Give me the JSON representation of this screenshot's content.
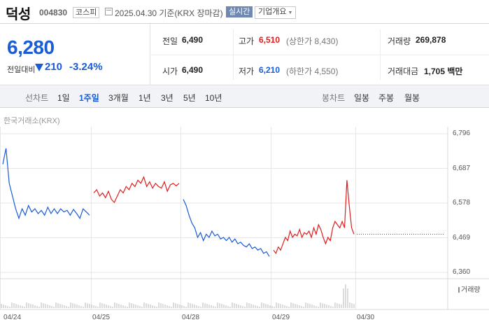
{
  "header": {
    "name": "덕성",
    "code": "004830",
    "market": "코스피",
    "date": "2025.04.30 기준(KRX 장마감)",
    "realtime_button": "실시간",
    "company_info_button": "기업개요"
  },
  "price": {
    "current": "6,280",
    "compare_label": "전일대비",
    "change": "210",
    "change_pct": "-3.24%",
    "direction": "down"
  },
  "stats": {
    "prev_close_label": "전일",
    "prev_close": "6,490",
    "high_label": "고가",
    "high": "6,510",
    "upper_limit": "(상한가 8,430)",
    "volume_label": "거래량",
    "volume": "269,878",
    "open_label": "시가",
    "open": "6,490",
    "low_label": "저가",
    "low": "6,210",
    "lower_limit": "(하한가 4,550)",
    "amount_label": "거래대금",
    "amount": "1,705 백만"
  },
  "tabs": {
    "line_label": "선차트",
    "line_items": [
      "1일",
      "1주일",
      "3개월",
      "1년",
      "3년",
      "5년",
      "10년"
    ],
    "line_active": "1주일",
    "candle_label": "봉차트",
    "candle_items": [
      "일봉",
      "주봉",
      "월봉"
    ]
  },
  "chart_source": "한국거래소(KRX)",
  "volume_legend": "거래량",
  "colors": {
    "up": "#e01d1d",
    "down": "#1a5bd6",
    "accent": "#1a5bd6"
  },
  "chart_data": {
    "type": "line",
    "title": "",
    "x_ticks": [
      "04/24",
      "04/25",
      "04/28",
      "04/29",
      "04/30"
    ],
    "y_ticks": [
      6796,
      6687,
      6578,
      6469,
      6360
    ],
    "ylim": [
      6360,
      6796
    ],
    "reference_price": 6480,
    "series": [
      {
        "day": "04/24",
        "trend": "down",
        "values": [
          6700,
          6750,
          6640,
          6600,
          6560,
          6530,
          6560,
          6540,
          6570,
          6550,
          6560,
          6545,
          6555,
          6540,
          6565,
          6545,
          6560,
          6545,
          6560,
          6550,
          6555,
          6540,
          6558,
          6545,
          6530,
          6560,
          6550,
          6540
        ]
      },
      {
        "day": "04/25",
        "trend": "up",
        "values": [
          6610,
          6620,
          6600,
          6610,
          6595,
          6615,
          6590,
          6580,
          6600,
          6620,
          6610,
          6630,
          6620,
          6640,
          6630,
          6650,
          6640,
          6660,
          6630,
          6645,
          6625,
          6640,
          6630,
          6625,
          6645,
          6615,
          6635,
          6640,
          6632,
          6640
        ]
      },
      {
        "day": "04/28",
        "trend": "down",
        "values": [
          6590,
          6570,
          6540,
          6515,
          6500,
          6470,
          6485,
          6460,
          6480,
          6470,
          6490,
          6475,
          6480,
          6465,
          6470,
          6460,
          6470,
          6455,
          6465,
          6450,
          6455,
          6445,
          6440,
          6450,
          6435,
          6440,
          6430,
          6435,
          6420,
          6425,
          6410
        ]
      },
      {
        "day": "04/29",
        "trend": "up",
        "values": [
          6430,
          6420,
          6440,
          6430,
          6450,
          6470,
          6460,
          6490,
          6470,
          6480,
          6475,
          6495,
          6470,
          6485,
          6480,
          6490,
          6470,
          6500,
          6480,
          6510,
          6495,
          6470,
          6450,
          6470,
          6460,
          6500,
          6520,
          6510,
          6500,
          6520,
          6500,
          6650,
          6570,
          6500,
          6480
        ]
      }
    ]
  }
}
